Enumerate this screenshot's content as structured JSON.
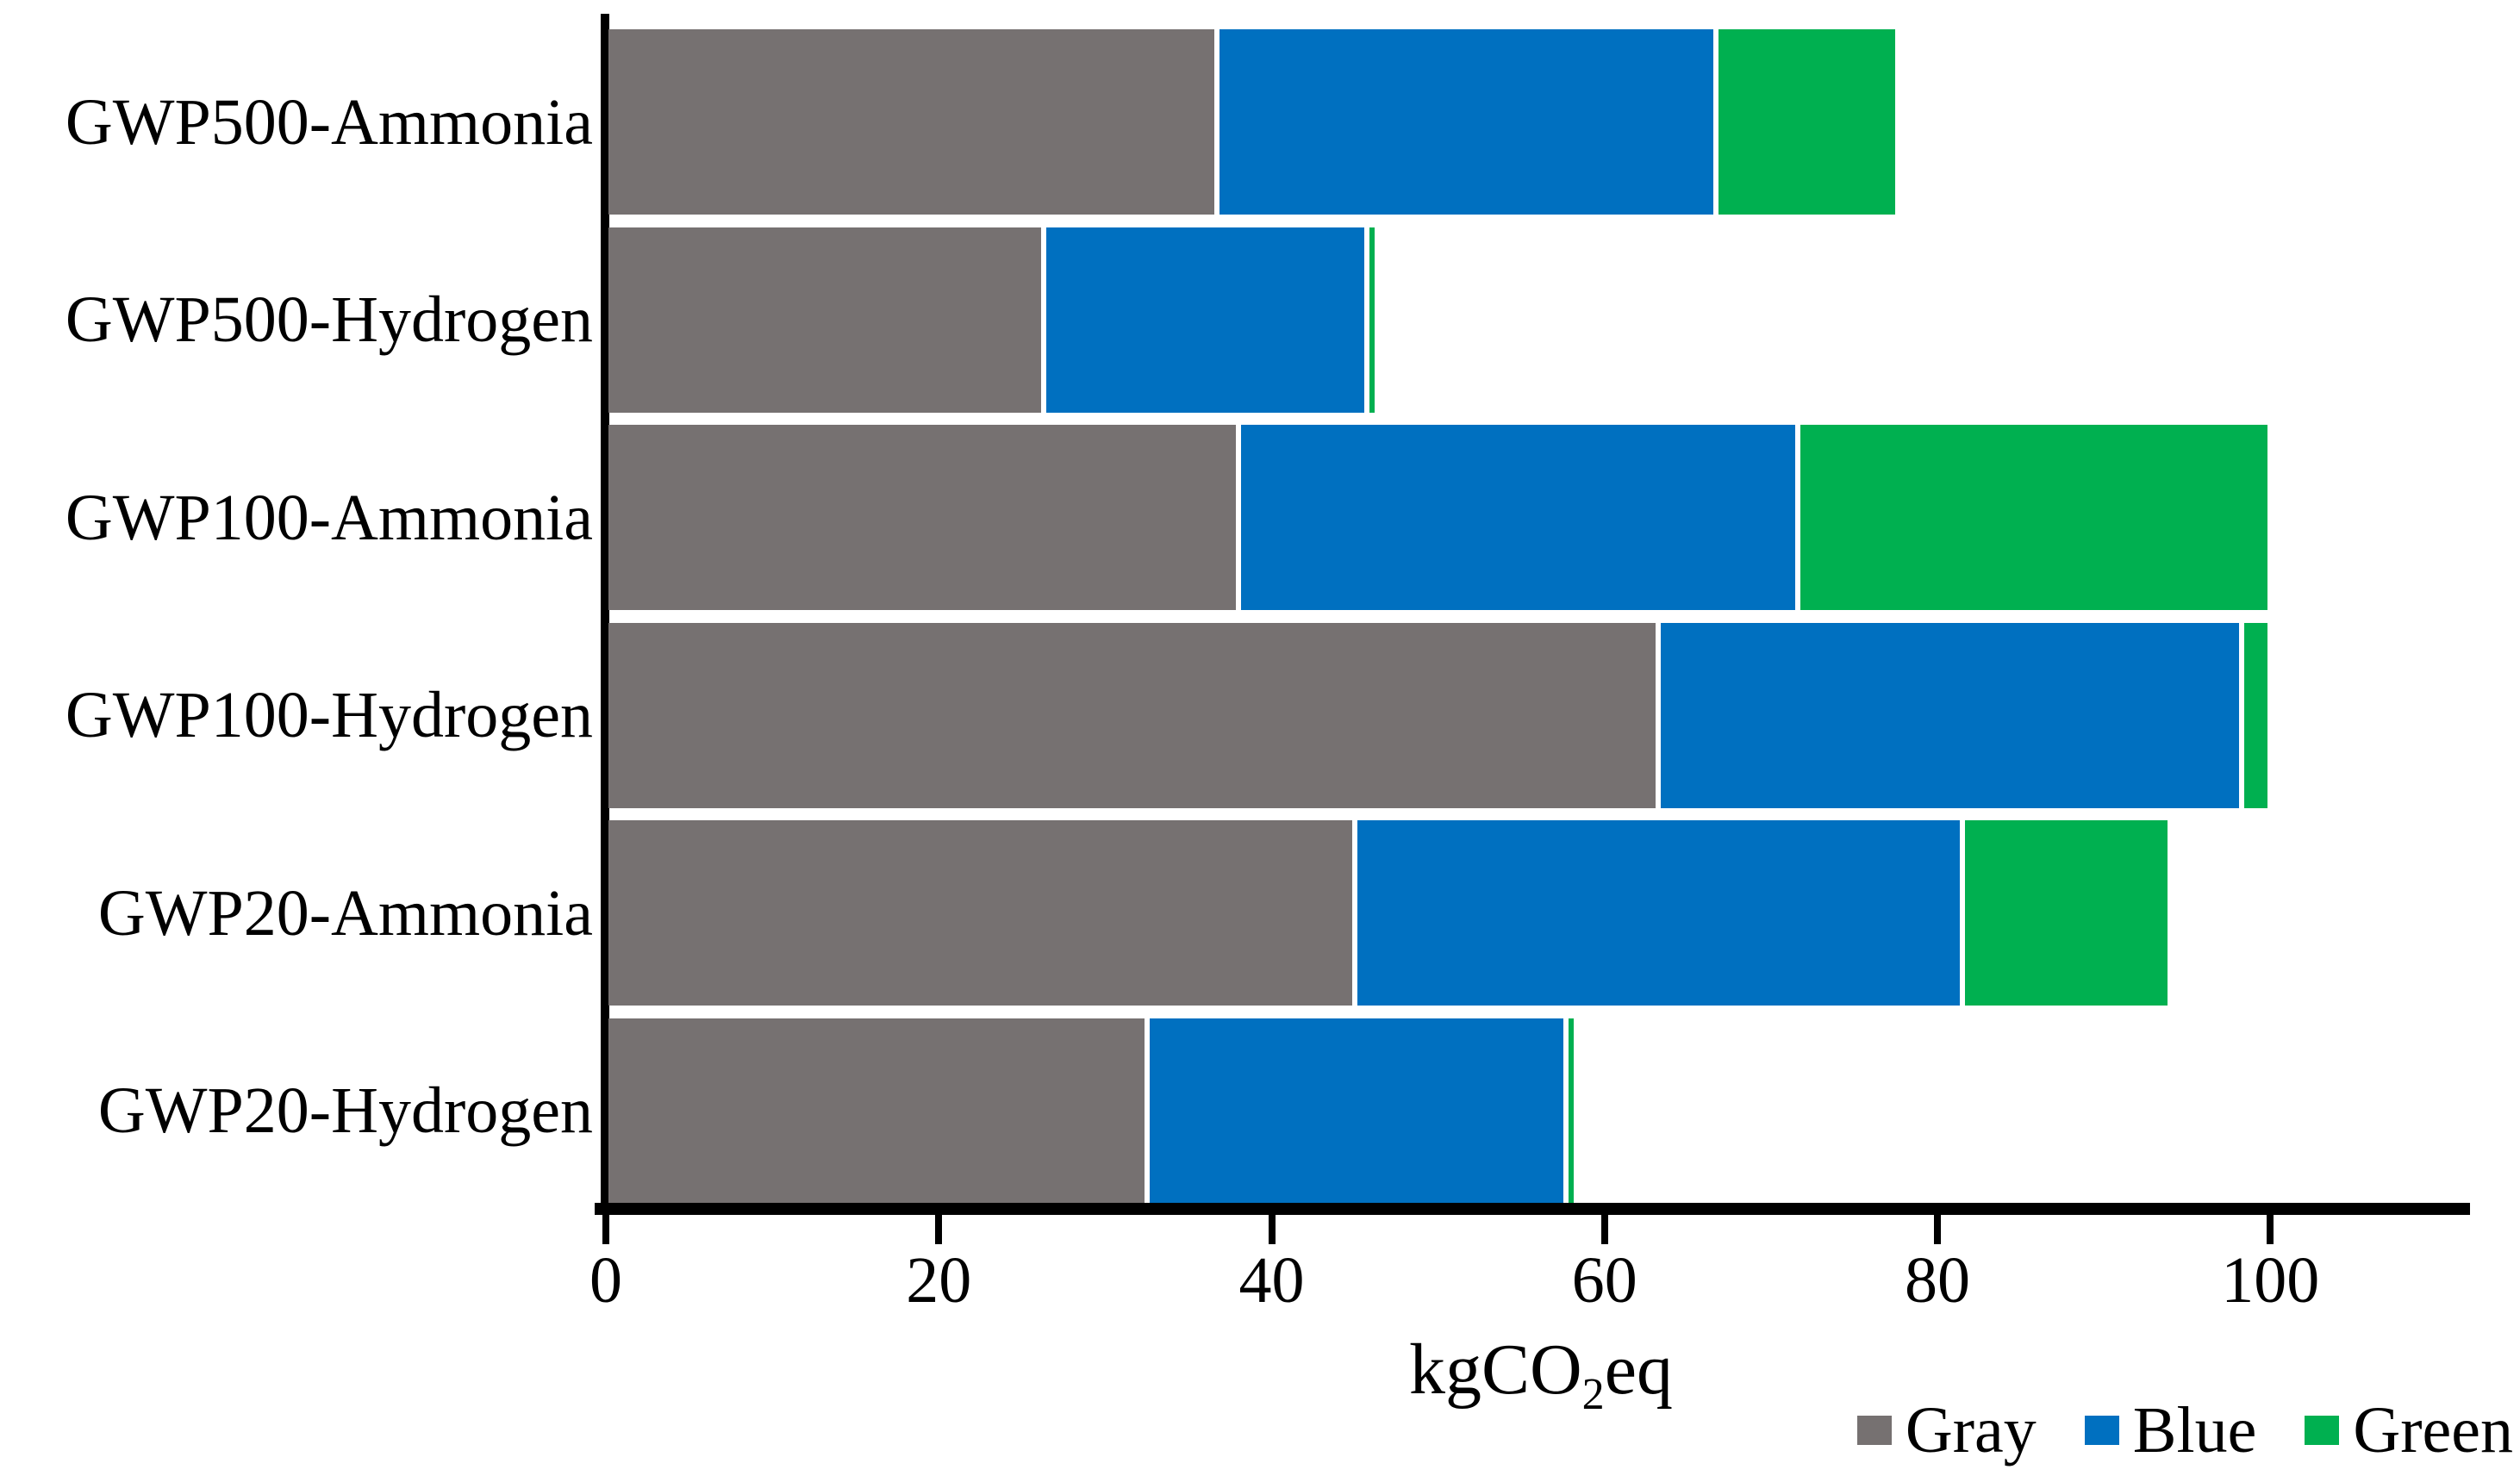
{
  "chart_data": {
    "type": "bar",
    "orientation": "horizontal-stacked",
    "categories": [
      "GWP500-Ammonia",
      "GWP500-Hydrogen",
      "GWP100-Ammonia",
      "GWP100-Hydrogen",
      "GWP20-Ammonia",
      "GWP20-Hydrogen"
    ],
    "series": [
      {
        "name": "Gray",
        "color": "#767171",
        "values": [
          36.7,
          26.3,
          38.0,
          63.2,
          45.0,
          32.5
        ]
      },
      {
        "name": "Blue",
        "color": "#0070C0",
        "values": [
          30.0,
          19.4,
          33.6,
          35.1,
          36.5,
          25.2
        ]
      },
      {
        "name": "Green",
        "color": "#00B050",
        "values": [
          10.9,
          0.4,
          28.4,
          1.7,
          12.5,
          0.6
        ]
      }
    ],
    "stacked_totals": [
      77.6,
      46.1,
      100.0,
      100.0,
      94.0,
      58.3
    ],
    "x_ticks": [
      0,
      20,
      40,
      60,
      80,
      100
    ],
    "xlim": [
      0,
      112
    ],
    "xlabel": {
      "prefix": "kgCO",
      "sub": "2",
      "suffix": "eq"
    },
    "title": "",
    "grid": "off",
    "legend_position": "bottom-right",
    "axis_color": "#000000",
    "background_color": "#ffffff"
  }
}
